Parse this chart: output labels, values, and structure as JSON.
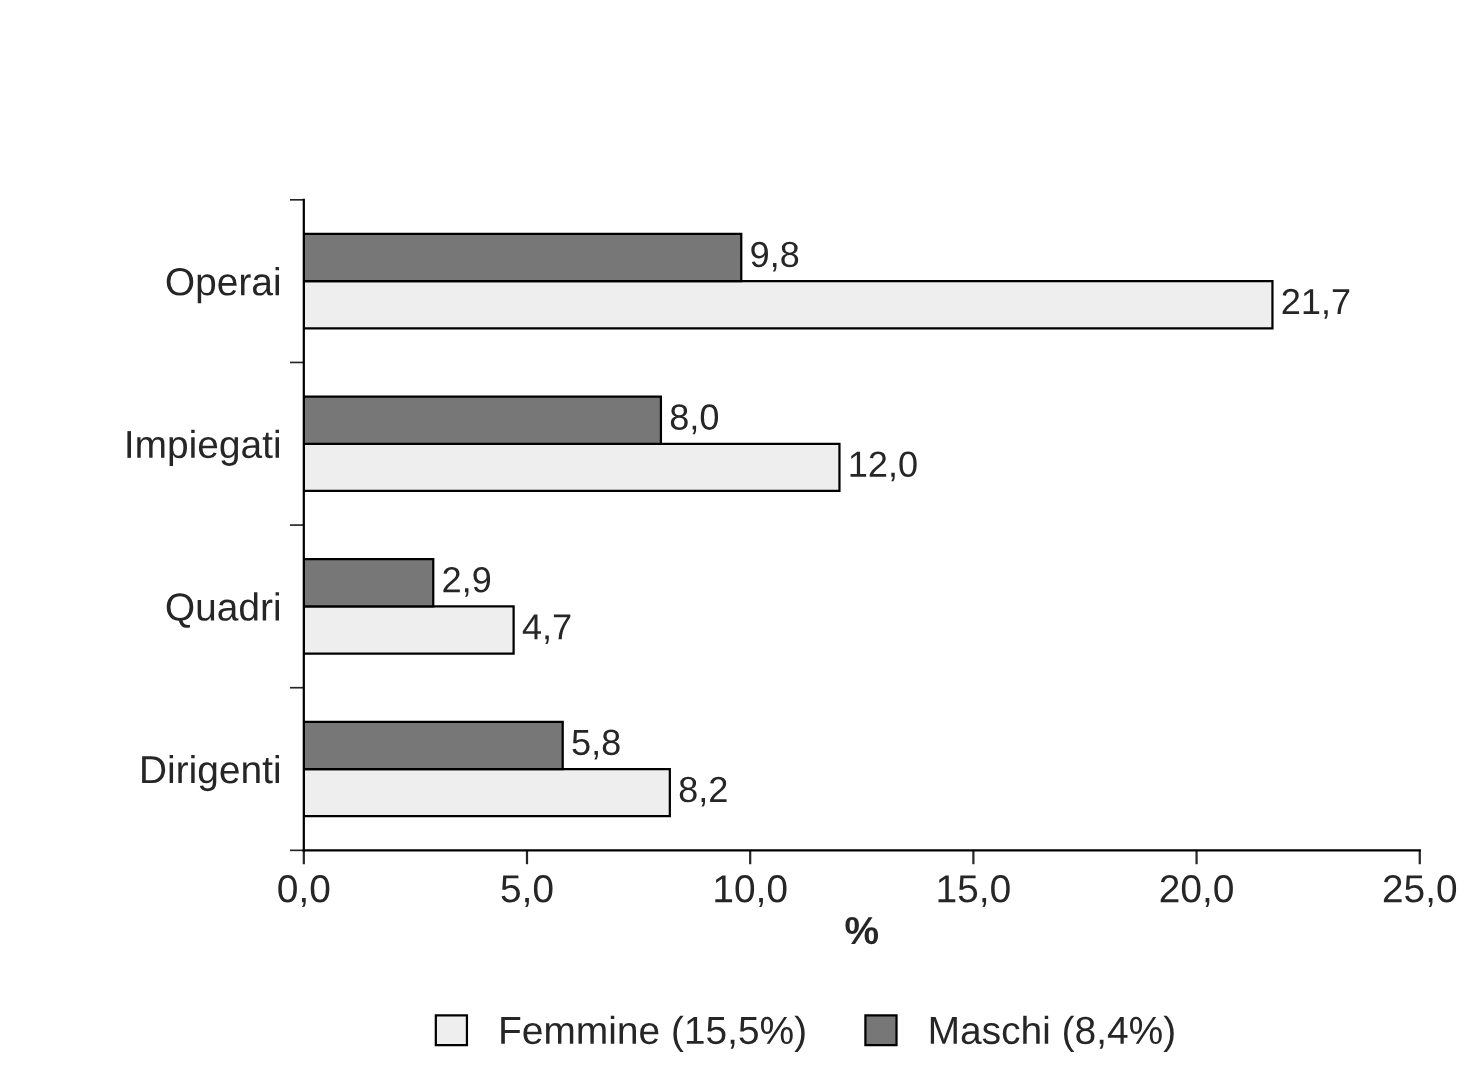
{
  "chart_data": {
    "type": "bar",
    "orientation": "horizontal",
    "xlabel": "%",
    "categories": [
      "Operai",
      "Impiegati",
      "Quadri",
      "Dirigenti"
    ],
    "series": [
      {
        "name": "Femmine (15,5%)",
        "color": "#eeeeee",
        "values": [
          21.7,
          12.0,
          4.7,
          8.2
        ],
        "value_labels": [
          "21,7",
          "12,0",
          "4,7",
          "8,2"
        ]
      },
      {
        "name": "Maschi (8,4%)",
        "color": "#777777",
        "values": [
          9.8,
          8.0,
          2.9,
          5.8
        ],
        "value_labels": [
          "9,8",
          "8,0",
          "2,9",
          "5,8"
        ]
      }
    ],
    "xlim": [
      0,
      25
    ],
    "xticks": [
      {
        "value": 0,
        "label": "0,0"
      },
      {
        "value": 5,
        "label": "5,0"
      },
      {
        "value": 10,
        "label": "10,0"
      },
      {
        "value": 15,
        "label": "15,0"
      },
      {
        "value": 20,
        "label": "20,0"
      },
      {
        "value": 25,
        "label": "25,0"
      }
    ],
    "grid": false,
    "legend": "bottom"
  }
}
